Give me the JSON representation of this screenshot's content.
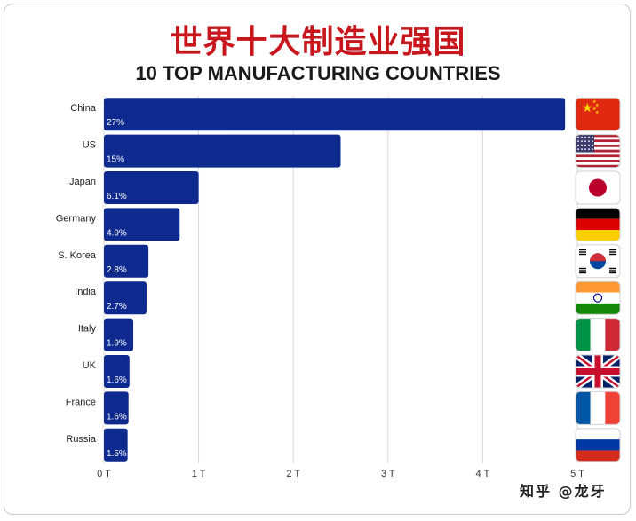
{
  "header": {
    "title_cn": "世界十大制造业强国",
    "title_en": "10 TOP MANUFACTURING COUNTRIES"
  },
  "watermark": "知乎 @龙牙",
  "colors": {
    "bar": "#0f2a8f",
    "grid": "#d9d9d9",
    "title_cn": "#c8161d"
  },
  "chart_data": {
    "type": "bar",
    "orientation": "horizontal",
    "title": "10 TOP MANUFACTURING COUNTRIES",
    "categories": [
      "China",
      "US",
      "Japan",
      "Germany",
      "S. Korea",
      "India",
      "Italy",
      "UK",
      "France",
      "Russia"
    ],
    "values": [
      4.87,
      2.5,
      1.0,
      0.8,
      0.47,
      0.45,
      0.31,
      0.27,
      0.26,
      0.25
    ],
    "data_labels": [
      "27%",
      "15%",
      "6.1%",
      "4.9%",
      "2.8%",
      "2.7%",
      "1.9%",
      "1.6%",
      "1.6%",
      "1.5%"
    ],
    "xlim": [
      0,
      5
    ],
    "xticks": [
      0,
      1,
      2,
      3,
      4,
      5
    ],
    "xtick_labels": [
      "0 T",
      "1 T",
      "2 T",
      "3 T",
      "4 T",
      "5 T"
    ],
    "grid": true,
    "flags": [
      "flag-china-icon",
      "flag-us-icon",
      "flag-japan-icon",
      "flag-germany-icon",
      "flag-south-korea-icon",
      "flag-india-icon",
      "flag-italy-icon",
      "flag-uk-icon",
      "flag-france-icon",
      "flag-russia-icon"
    ]
  }
}
